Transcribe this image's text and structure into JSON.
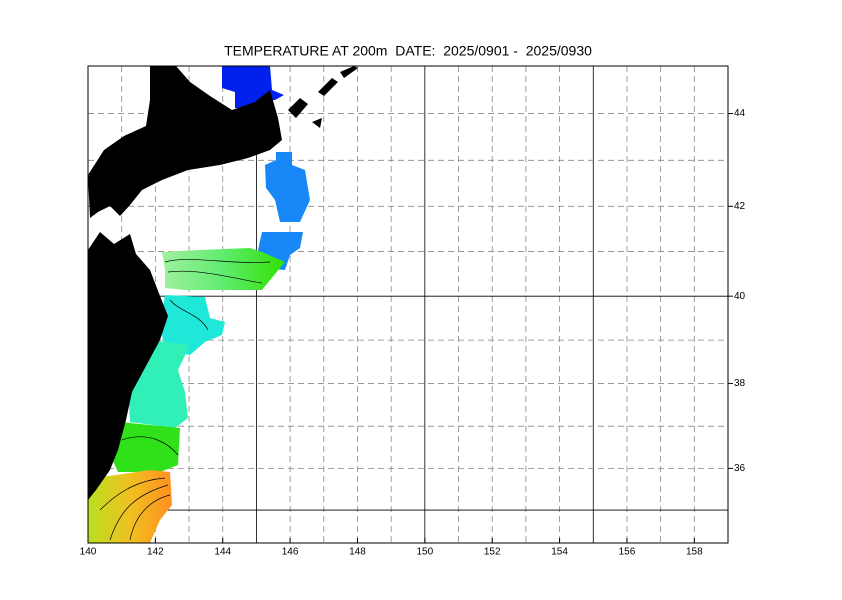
{
  "title": "TEMPERATURE AT 200m  DATE:  2025/0901 -  2025/0930",
  "map": {
    "lon_range": [
      140,
      159
    ],
    "lat_range": [
      34.2,
      45
    ],
    "lon_ticks": [
      140,
      142,
      144,
      146,
      148,
      150,
      152,
      154,
      156,
      158
    ],
    "lat_ticks": [
      36,
      38,
      40,
      42,
      44
    ]
  }
}
